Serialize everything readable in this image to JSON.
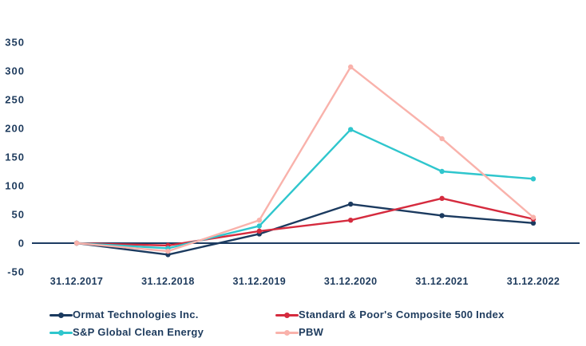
{
  "chart_data": {
    "type": "line",
    "title": "",
    "xlabel": "",
    "ylabel": "",
    "categories": [
      "31.12.2017",
      "31.12.2018",
      "31.12.2019",
      "31.12.2020",
      "31.12.2021",
      "31.12.2022"
    ],
    "series": [
      {
        "name": "Ormat Technologies Inc.",
        "color": "#1b3a5f",
        "values": [
          0,
          -20,
          16,
          68,
          48,
          35
        ]
      },
      {
        "name": "Standard & Poor's Composite 500 Index",
        "color": "#d52b3e",
        "values": [
          0,
          -4,
          21,
          40,
          78,
          42
        ]
      },
      {
        "name": "S&P Global Clean Energy",
        "color": "#2fc6cd",
        "values": [
          0,
          -9,
          30,
          198,
          125,
          112
        ]
      },
      {
        "name": "PBW",
        "color": "#f9b2ab",
        "values": [
          0,
          -14,
          40,
          307,
          182,
          45
        ]
      }
    ],
    "yticks": [
      350,
      300,
      250,
      200,
      150,
      100,
      50,
      0,
      -50
    ],
    "ylim": [
      -50,
      350
    ],
    "grid": false,
    "baseline_at_zero": true,
    "marker": "circle",
    "legend_position": "bottom",
    "axis_color": "#1d3c62",
    "text_color": "#1e3b5d"
  }
}
